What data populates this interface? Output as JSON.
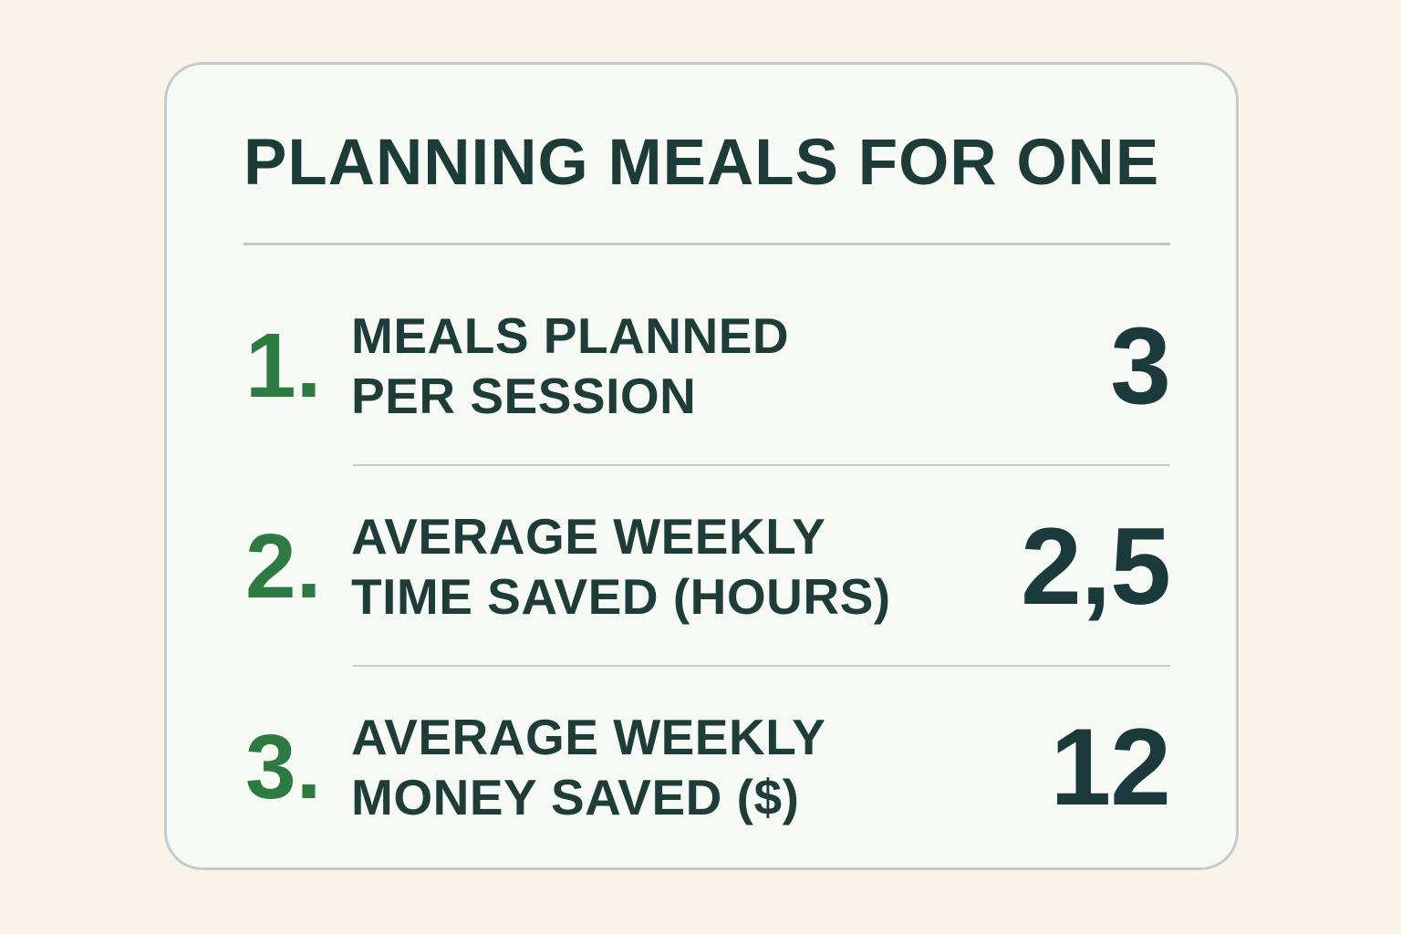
{
  "page": {
    "background_color": "#f8f4ea"
  },
  "card": {
    "background_color": "#f7f9f5",
    "border_color": "#c6cbc9",
    "title": "PLANNING MEALS FOR ONE",
    "title_color": "#1d3c38",
    "accent_green": "#2d7b41",
    "value_color": "#1b3a3c",
    "divider_color": "#c8ccca",
    "rows": [
      {
        "index": "1.",
        "label_line1": "MEALS PLANNED",
        "label_line2": "PER SESSION",
        "value": "3"
      },
      {
        "index": "2.",
        "label_line1": "AVERAGE WEEKLY",
        "label_line2": "TIME SAVED (HOURS)",
        "value": "2,5"
      },
      {
        "index": "3.",
        "label_line1": "AVERAGE WEEKLY",
        "label_line2": "MONEY SAVED ($)",
        "value": "12"
      }
    ]
  },
  "chart_data": {
    "type": "table",
    "title": "PLANNING MEALS FOR ONE",
    "categories": [
      "MEALS PLANNED PER SESSION",
      "AVERAGE WEEKLY TIME SAVED (HOURS)",
      "AVERAGE WEEKLY MONEY SAVED ($)"
    ],
    "values": [
      3,
      2.5,
      12
    ],
    "values_displayed": [
      "3",
      "2,5",
      "12"
    ],
    "legend_position": "none",
    "grid": false
  }
}
